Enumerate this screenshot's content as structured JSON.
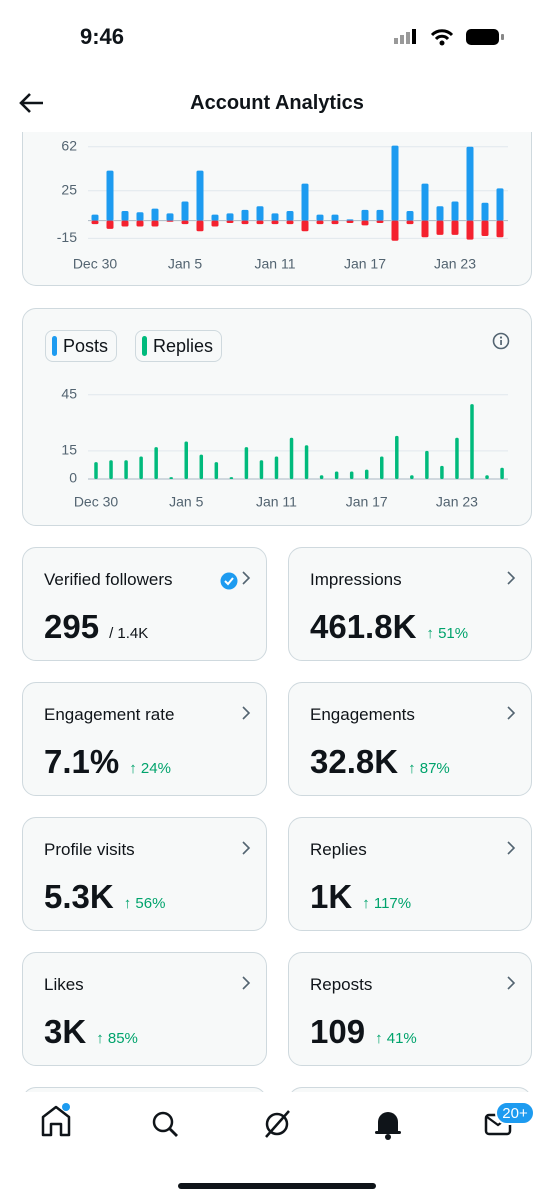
{
  "status_bar": {
    "time": "9:46"
  },
  "header": {
    "title": "Account Analytics"
  },
  "chart_data": [
    {
      "type": "bar",
      "categories": [
        "Dec 30",
        null,
        null,
        null,
        null,
        null,
        "Jan 5",
        null,
        null,
        null,
        null,
        null,
        "Jan 11",
        null,
        null,
        null,
        null,
        null,
        "Jan 17",
        null,
        null,
        null,
        null,
        null,
        "Jan 23",
        null,
        null,
        null
      ],
      "series": [
        {
          "color": "#1d9bf0",
          "values": [
            5,
            42,
            8,
            7,
            10,
            6,
            16,
            42,
            5,
            6,
            9,
            12,
            6,
            8,
            31,
            5,
            5,
            1,
            9,
            9,
            63,
            8,
            31,
            12,
            16,
            62,
            15,
            27
          ]
        },
        {
          "color": "#f4212e",
          "values": [
            -3,
            -7,
            -5,
            -5,
            -5,
            -1,
            -3,
            -9,
            -5,
            -2,
            -3,
            -3,
            -3,
            -3,
            -9,
            -3,
            -3,
            -2,
            -4,
            -2,
            -17,
            -3,
            -14,
            -12,
            -12,
            -16,
            -13,
            -14
          ]
        }
      ],
      "ylim": [
        -18,
        66
      ],
      "yticks": [
        -15,
        25,
        62
      ],
      "grid": true
    },
    {
      "type": "bar",
      "categories": [
        "Dec 30",
        null,
        null,
        null,
        null,
        null,
        "Jan 5",
        null,
        null,
        null,
        null,
        null,
        "Jan 11",
        null,
        null,
        null,
        null,
        null,
        "Jan 17",
        null,
        null,
        null,
        null,
        null,
        "Jan 23",
        null,
        null,
        null
      ],
      "series": [
        {
          "name": "Posts",
          "color": "#1d9bf0",
          "values": [
            0,
            0,
            0,
            0,
            0,
            0,
            0,
            0,
            0,
            0,
            0,
            0,
            0,
            0,
            0,
            0,
            0,
            0,
            0,
            0,
            0,
            0,
            0,
            0,
            0,
            0,
            0,
            0
          ]
        },
        {
          "name": "Replies",
          "color": "#00ba7c",
          "values": [
            9,
            10,
            10,
            12,
            17,
            1,
            20,
            13,
            9,
            1,
            17,
            10,
            12,
            22,
            18,
            2,
            4,
            4,
            5,
            12,
            23,
            2,
            15,
            7,
            22,
            40,
            2,
            6
          ]
        }
      ],
      "ylim": [
        0,
        47
      ],
      "yticks": [
        0,
        15,
        45
      ],
      "grid": true
    }
  ],
  "cards": [
    {
      "title": "Verified followers",
      "value": "295",
      "detail": "/ 1.4K"
    },
    {
      "title": "Impressions",
      "value": "461.8K",
      "detail": "↑ 51%"
    },
    {
      "title": "Engagement rate",
      "value": "7.1%",
      "detail": "↑ 24%"
    },
    {
      "title": "Engagements",
      "value": "32.8K",
      "detail": "↑ 87%"
    },
    {
      "title": "Profile visits",
      "value": "5.3K",
      "detail": "↑ 56%"
    },
    {
      "title": "Replies",
      "value": "1K",
      "detail": "↑ 117%"
    },
    {
      "title": "Likes",
      "value": "3K",
      "detail": "↑ 85%"
    },
    {
      "title": "Reposts",
      "value": "109",
      "detail": "↑ 41%"
    }
  ],
  "nav": {
    "badge": "20+"
  }
}
